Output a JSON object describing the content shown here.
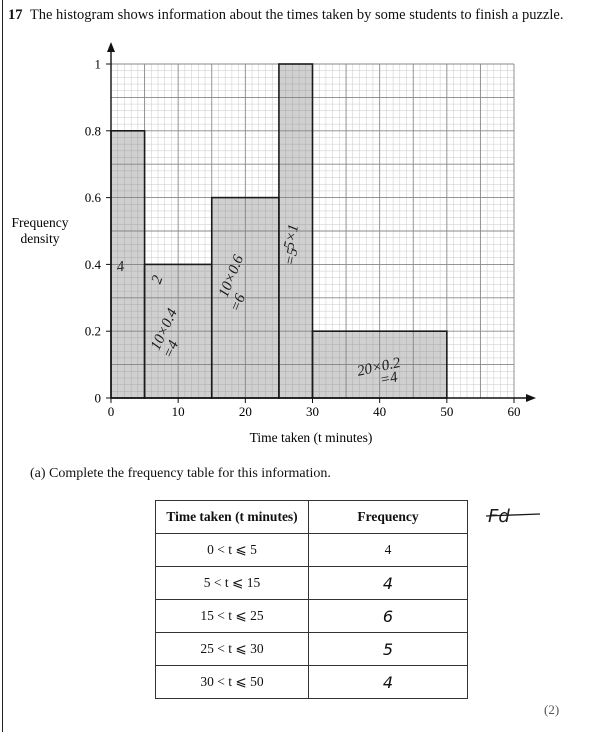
{
  "question": {
    "number": "17",
    "text": "The histogram shows information about the times taken by some students to finish a puzzle."
  },
  "chart_data": {
    "type": "bar",
    "subtype": "histogram",
    "title": "",
    "xlabel": "Time taken (t minutes)",
    "ylabel": "Frequency density",
    "xlim": [
      0,
      60
    ],
    "ylim": [
      0,
      1
    ],
    "x_ticks": [
      0,
      10,
      20,
      30,
      40,
      50,
      60
    ],
    "y_ticks": [
      0,
      0.2,
      0.4,
      0.6,
      0.8,
      1
    ],
    "y_tick_labels": [
      "0",
      "0.2",
      "0.4",
      "0.6",
      "0.8",
      "1"
    ],
    "grid": true,
    "bins": [
      {
        "from": 0,
        "to": 5,
        "density": 0.8
      },
      {
        "from": 5,
        "to": 15,
        "density": 0.4
      },
      {
        "from": 15,
        "to": 25,
        "density": 0.6
      },
      {
        "from": 25,
        "to": 30,
        "density": 1.0
      },
      {
        "from": 30,
        "to": 50,
        "density": 0.2
      }
    ],
    "annotations": [
      {
        "text": "4",
        "x": 1.5,
        "y": 0.38
      },
      {
        "text": "2",
        "x": 7.5,
        "y": 0.35
      },
      {
        "text": "10×0.4",
        "x": 8.5,
        "y": 0.2
      },
      {
        "text": "=4",
        "x": 9.5,
        "y": 0.14
      },
      {
        "text": "10×0.6",
        "x": 18.5,
        "y": 0.36
      },
      {
        "text": "=6",
        "x": 19.5,
        "y": 0.28
      },
      {
        "text": "5×1",
        "x": 27.5,
        "y": 0.48
      },
      {
        "text": "=5",
        "x": 27.5,
        "y": 0.42
      },
      {
        "text": "20×0.2",
        "x": 40,
        "y": 0.08
      },
      {
        "text": "=4",
        "x": 41.5,
        "y": 0.045
      }
    ]
  },
  "part_a": {
    "label": "(a)",
    "text": "Complete the frequency table for this information."
  },
  "table": {
    "headers": [
      "Time taken (t minutes)",
      "Frequency"
    ],
    "rows": [
      {
        "interval": "0 < t ⩽ 5",
        "frequency": "4"
      },
      {
        "interval": "5 < t ⩽ 15",
        "frequency": "4"
      },
      {
        "interval": "15 < t ⩽ 25",
        "frequency": "6"
      },
      {
        "interval": "25 < t ⩽ 30",
        "frequency": "5"
      },
      {
        "interval": "30 < t ⩽ 50",
        "frequency": "4"
      }
    ]
  },
  "side_note": "Fd",
  "marks": "(2)"
}
